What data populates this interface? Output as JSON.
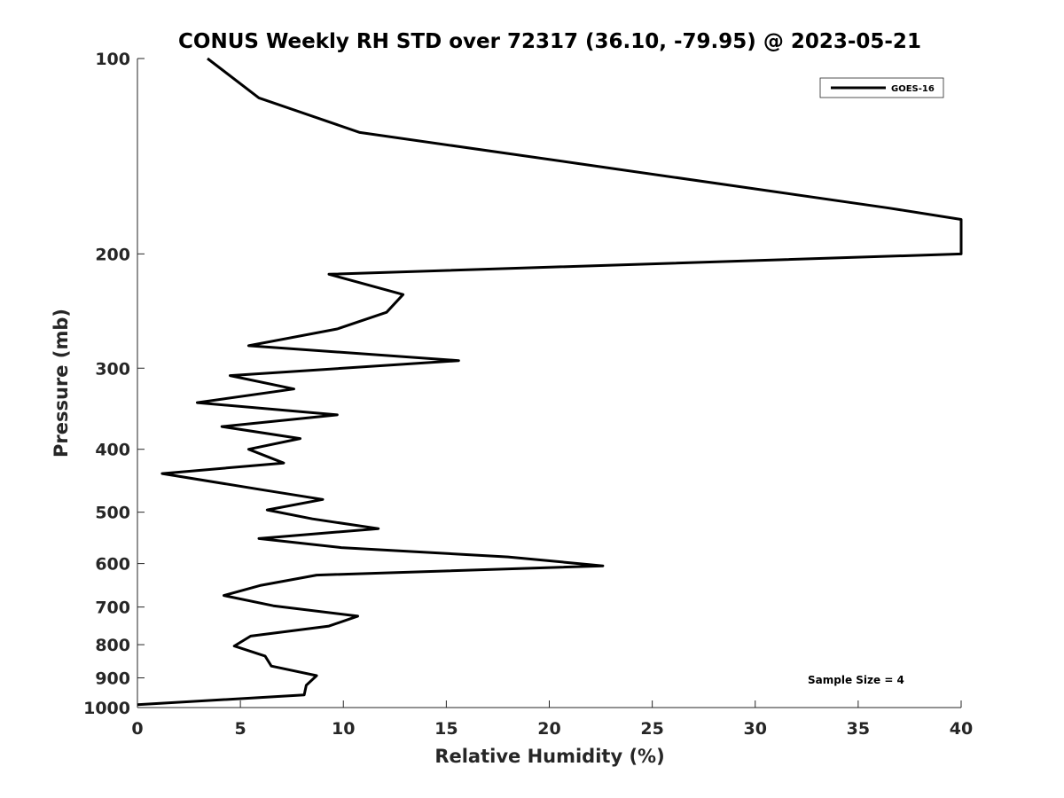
{
  "chart_data": {
    "type": "line",
    "title": "CONUS Weekly RH STD over 72317 (36.10, -79.95) @ 2023-05-21",
    "xlabel": "Relative Humidity (%)",
    "ylabel": "Pressure (mb)",
    "xlim": [
      0,
      40
    ],
    "ylim": [
      100,
      1000
    ],
    "yscale": "log",
    "y_reversed": true,
    "x_ticks": [
      0,
      5,
      10,
      15,
      20,
      25,
      30,
      35,
      40
    ],
    "y_ticks": [
      100,
      200,
      300,
      400,
      500,
      600,
      700,
      800,
      900,
      1000
    ],
    "grid": false,
    "legend_position": "top-right",
    "annotation": "Sample Size = 4",
    "series": [
      {
        "name": "GOES-16",
        "color": "#000000",
        "points": [
          [
            3.4,
            100
          ],
          [
            5.9,
            115
          ],
          [
            10.8,
            130
          ],
          [
            21.3,
            145
          ],
          [
            36.5,
            170
          ],
          [
            40.0,
            177
          ],
          [
            40.0,
            200
          ],
          [
            9.3,
            215
          ],
          [
            12.9,
            231
          ],
          [
            12.1,
            246
          ],
          [
            9.7,
            261
          ],
          [
            5.4,
            277
          ],
          [
            15.6,
            292
          ],
          [
            4.5,
            308
          ],
          [
            7.6,
            323
          ],
          [
            2.9,
            339
          ],
          [
            9.7,
            354
          ],
          [
            4.1,
            369
          ],
          [
            7.9,
            385
          ],
          [
            5.4,
            400
          ],
          [
            7.1,
            420
          ],
          [
            1.2,
            436
          ],
          [
            5.9,
            461
          ],
          [
            9.0,
            478
          ],
          [
            6.3,
            496
          ],
          [
            8.5,
            512
          ],
          [
            11.7,
            530
          ],
          [
            5.9,
            549
          ],
          [
            9.9,
            567
          ],
          [
            18.0,
            586
          ],
          [
            22.6,
            605
          ],
          [
            8.7,
            625
          ],
          [
            6.0,
            648
          ],
          [
            4.2,
            672
          ],
          [
            6.6,
            697
          ],
          [
            10.7,
            723
          ],
          [
            9.3,
            749
          ],
          [
            5.5,
            776
          ],
          [
            4.7,
            804
          ],
          [
            6.2,
            833
          ],
          [
            6.5,
            863
          ],
          [
            8.7,
            893
          ],
          [
            8.2,
            924
          ],
          [
            8.1,
            956
          ],
          [
            0.0,
            990
          ]
        ]
      }
    ]
  }
}
